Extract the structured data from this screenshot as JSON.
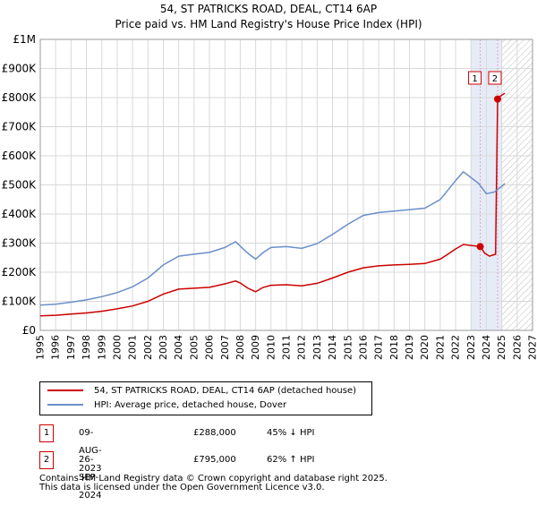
{
  "header": {
    "title": "54, ST PATRICKS ROAD, DEAL, CT14 6AP",
    "subtitle": "Price paid vs. HM Land Registry's House Price Index (HPI)"
  },
  "colors": {
    "property": "#cc0000",
    "hpi": "#6b8fc9",
    "grid": "#d9d9d9",
    "highlight": "#e6ecf7",
    "marker_line": "#e8a0c0",
    "hatch": "#bbbbbb"
  },
  "chart_data": {
    "type": "line",
    "title": "54, ST PATRICKS ROAD, DEAL, CT14 6AP",
    "subtitle": "Price paid vs. HM Land Registry's House Price Index (HPI)",
    "xlabel": "",
    "ylabel": "",
    "xlim": [
      1995,
      2027
    ],
    "ylim": [
      0,
      1000000
    ],
    "grid": true,
    "y_ticks": [
      {
        "value": 0,
        "label": "£0"
      },
      {
        "value": 100000,
        "label": "£100K"
      },
      {
        "value": 200000,
        "label": "£200K"
      },
      {
        "value": 300000,
        "label": "£300K"
      },
      {
        "value": 400000,
        "label": "£400K"
      },
      {
        "value": 500000,
        "label": "£500K"
      },
      {
        "value": 600000,
        "label": "£600K"
      },
      {
        "value": 700000,
        "label": "£700K"
      },
      {
        "value": 800000,
        "label": "£800K"
      },
      {
        "value": 900000,
        "label": "£900K"
      },
      {
        "value": 1000000,
        "label": "£1M"
      }
    ],
    "x_ticks": [
      "1995",
      "1996",
      "1997",
      "1998",
      "1999",
      "2000",
      "2001",
      "2002",
      "2003",
      "2004",
      "2005",
      "2006",
      "2007",
      "2008",
      "2009",
      "2010",
      "2011",
      "2012",
      "2013",
      "2014",
      "2015",
      "2016",
      "2017",
      "2018",
      "2019",
      "2020",
      "2021",
      "2022",
      "2023",
      "2024",
      "2025",
      "2026",
      "2027"
    ],
    "highlight_range": [
      2023.0,
      2025.0
    ],
    "hatch_from": 2025.0,
    "series": [
      {
        "name": "54, ST PATRICKS ROAD, DEAL, CT14 6AP (detached house)",
        "color": "#cc0000",
        "x": [
          1995,
          1996,
          1997,
          1998,
          1999,
          2000,
          2001,
          2002,
          2003,
          2004,
          2005,
          2006,
          2007,
          2007.7,
          2008,
          2008.5,
          2009,
          2009.5,
          2010,
          2011,
          2012,
          2013,
          2014,
          2015,
          2016,
          2017,
          2018,
          2019,
          2020,
          2021,
          2021.5,
          2022,
          2022.5,
          2023,
          2023.6,
          2023.9,
          2024.2,
          2024.6,
          2024.73,
          2024.9,
          2025.2
        ],
        "y": [
          50000,
          52000,
          56000,
          60000,
          66000,
          74000,
          84000,
          100000,
          125000,
          142000,
          145000,
          148000,
          160000,
          170000,
          163000,
          145000,
          133000,
          148000,
          155000,
          157000,
          153000,
          162000,
          180000,
          200000,
          215000,
          222000,
          225000,
          227000,
          230000,
          245000,
          262000,
          280000,
          295000,
          292000,
          288000,
          265000,
          255000,
          262000,
          795000,
          805000,
          815000
        ]
      },
      {
        "name": "HPI: Average price, detached house, Dover",
        "color": "#6b8fc9",
        "x": [
          1995,
          1996,
          1997,
          1998,
          1999,
          2000,
          2001,
          2002,
          2003,
          2004,
          2005,
          2006,
          2007,
          2007.7,
          2008,
          2008.5,
          2009,
          2009.5,
          2010,
          2011,
          2012,
          2013,
          2014,
          2015,
          2016,
          2017,
          2018,
          2019,
          2020,
          2021,
          2021.5,
          2022,
          2022.5,
          2023,
          2023.5,
          2024,
          2024.5,
          2025,
          2025.2
        ],
        "y": [
          87000,
          90000,
          97000,
          105000,
          116000,
          130000,
          150000,
          180000,
          225000,
          255000,
          262000,
          268000,
          285000,
          305000,
          290000,
          265000,
          245000,
          268000,
          285000,
          288000,
          282000,
          298000,
          330000,
          365000,
          395000,
          405000,
          410000,
          415000,
          420000,
          450000,
          482000,
          515000,
          545000,
          525000,
          505000,
          470000,
          475000,
          495000,
          505000
        ]
      }
    ],
    "transactions": [
      {
        "id": "1",
        "x": 2023.6,
        "y": 288000
      },
      {
        "id": "2",
        "x": 2024.73,
        "y": 795000
      }
    ]
  },
  "legend": {
    "property_label": "54, ST PATRICKS ROAD, DEAL, CT14 6AP (detached house)",
    "hpi_label": "HPI: Average price, detached house, Dover"
  },
  "transactions": [
    {
      "id": "1",
      "date": "09-AUG-2023",
      "price": "£288,000",
      "hpi": "45% ↓ HPI"
    },
    {
      "id": "2",
      "date": "26-SEP-2024",
      "price": "£795,000",
      "hpi": "62% ↑ HPI"
    }
  ],
  "footer": {
    "line1": "Contains HM Land Registry data © Crown copyright and database right 2025.",
    "line2": "This data is licensed under the Open Government Licence v3.0."
  }
}
